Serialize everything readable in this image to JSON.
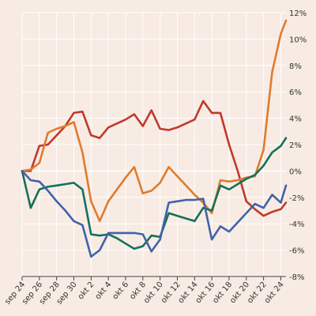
{
  "chart_data": {
    "type": "line",
    "title": "",
    "xlabel": "",
    "ylabel": "",
    "ylim": [
      -8,
      12
    ],
    "y_ticks": [
      -8,
      -6,
      -4,
      -2,
      0,
      2,
      4,
      6,
      8,
      10,
      12
    ],
    "y_tick_labels": [
      "-8%",
      "-6%",
      "-4%",
      "-2%",
      "0%",
      "2%",
      "4%",
      "6%",
      "8%",
      "10%",
      "12%"
    ],
    "x_tick_labels": [
      "sep 24",
      "sep 26",
      "sep 28",
      "sep 30",
      "okt 2",
      "okt 4",
      "okt 6",
      "okt 8",
      "okt 10",
      "okt 12",
      "okt 14",
      "okt 16",
      "okt 18",
      "okt 20",
      "okt 22",
      "okt 24"
    ],
    "x_tick_positions": [
      0,
      2,
      4,
      6,
      8,
      10,
      12,
      14,
      16,
      18,
      20,
      22,
      24,
      26,
      28,
      30
    ],
    "x_range": [
      0,
      30.6
    ],
    "grid": true,
    "legend": "none",
    "series": [
      {
        "color": "#c0392b",
        "points": [
          [
            0,
            0
          ],
          [
            1,
            0
          ],
          [
            2,
            1.9
          ],
          [
            3,
            2.0
          ],
          [
            4,
            2.7
          ],
          [
            5,
            3.4
          ],
          [
            6,
            4.4
          ],
          [
            7,
            4.5
          ],
          [
            8,
            2.7
          ],
          [
            9,
            2.5
          ],
          [
            10,
            3.3
          ],
          [
            11,
            3.6
          ],
          [
            12,
            3.9
          ],
          [
            13,
            4.3
          ],
          [
            14,
            3.4
          ],
          [
            15,
            4.6
          ],
          [
            16,
            3.2
          ],
          [
            17,
            3.1
          ],
          [
            18,
            3.3
          ],
          [
            19,
            3.6
          ],
          [
            20,
            3.9
          ],
          [
            21,
            5.3
          ],
          [
            22,
            4.4
          ],
          [
            23,
            4.4
          ],
          [
            24,
            2.0
          ],
          [
            25,
            0.0
          ],
          [
            26,
            -2.3
          ],
          [
            27,
            -2.9
          ],
          [
            28,
            -3.4
          ],
          [
            29,
            -3.1
          ],
          [
            30,
            -2.9
          ],
          [
            30.6,
            -2.4
          ]
        ]
      },
      {
        "color": "#e07b2c",
        "points": [
          [
            0,
            0
          ],
          [
            1,
            0.1
          ],
          [
            2,
            0.6
          ],
          [
            3,
            2.9
          ],
          [
            4,
            3.2
          ],
          [
            5,
            3.4
          ],
          [
            6,
            3.7
          ],
          [
            7,
            1.4
          ],
          [
            8,
            -2.3
          ],
          [
            9,
            -3.8
          ],
          [
            10,
            -2.3
          ],
          [
            11,
            -1.4
          ],
          [
            12,
            -0.5
          ],
          [
            13,
            0.3
          ],
          [
            14,
            -1.7
          ],
          [
            15,
            -1.5
          ],
          [
            16,
            -0.9
          ],
          [
            17,
            0.3
          ],
          [
            18,
            -0.4
          ],
          [
            19,
            -1.1
          ],
          [
            20,
            -1.8
          ],
          [
            21,
            -2.4
          ],
          [
            22,
            -3.2
          ],
          [
            23,
            -0.7
          ],
          [
            24,
            -0.8
          ],
          [
            25,
            -0.7
          ],
          [
            26,
            -0.5
          ],
          [
            27,
            -0.4
          ],
          [
            28,
            1.6
          ],
          [
            29,
            7.5
          ],
          [
            30,
            10.4
          ],
          [
            30.6,
            11.4
          ]
        ]
      },
      {
        "color": "#14705a",
        "points": [
          [
            0,
            0
          ],
          [
            1,
            -2.8
          ],
          [
            2,
            -1.4
          ],
          [
            3,
            -1.2
          ],
          [
            4,
            -1.1
          ],
          [
            5,
            -1.0
          ],
          [
            6,
            -0.9
          ],
          [
            7,
            -1.4
          ],
          [
            8,
            -4.8
          ],
          [
            9,
            -4.9
          ],
          [
            10,
            -4.8
          ],
          [
            11,
            -5.1
          ],
          [
            12,
            -5.5
          ],
          [
            13,
            -5.9
          ],
          [
            14,
            -5.7
          ],
          [
            15,
            -4.9
          ],
          [
            16,
            -5.0
          ],
          [
            17,
            -3.2
          ],
          [
            18,
            -3.4
          ],
          [
            19,
            -3.6
          ],
          [
            20,
            -3.8
          ],
          [
            21,
            -2.8
          ],
          [
            22,
            -3.0
          ],
          [
            23,
            -1.1
          ],
          [
            24,
            -1.4
          ],
          [
            25,
            -1.0
          ],
          [
            26,
            -0.6
          ],
          [
            27,
            -0.3
          ],
          [
            28,
            0.4
          ],
          [
            29,
            1.4
          ],
          [
            30,
            1.9
          ],
          [
            30.6,
            2.5
          ]
        ]
      },
      {
        "color": "#3f63a8",
        "points": [
          [
            0,
            0
          ],
          [
            1,
            -0.7
          ],
          [
            2,
            -0.8
          ],
          [
            3,
            -1.5
          ],
          [
            4,
            -2.3
          ],
          [
            5,
            -3.0
          ],
          [
            6,
            -3.8
          ],
          [
            7,
            -4.1
          ],
          [
            8,
            -6.5
          ],
          [
            9,
            -6.0
          ],
          [
            10,
            -4.7
          ],
          [
            11,
            -4.7
          ],
          [
            12,
            -4.7
          ],
          [
            13,
            -4.7
          ],
          [
            14,
            -4.8
          ],
          [
            15,
            -6.1
          ],
          [
            16,
            -5.2
          ],
          [
            17,
            -2.4
          ],
          [
            18,
            -2.3
          ],
          [
            19,
            -2.2
          ],
          [
            20,
            -2.2
          ],
          [
            21,
            -2.1
          ],
          [
            22,
            -5.2
          ],
          [
            23,
            -4.2
          ],
          [
            24,
            -4.6
          ],
          [
            25,
            -3.9
          ],
          [
            26,
            -3.2
          ],
          [
            27,
            -2.5
          ],
          [
            28,
            -2.8
          ],
          [
            29,
            -1.8
          ],
          [
            30,
            -2.4
          ],
          [
            30.6,
            -1.1
          ]
        ]
      }
    ]
  }
}
